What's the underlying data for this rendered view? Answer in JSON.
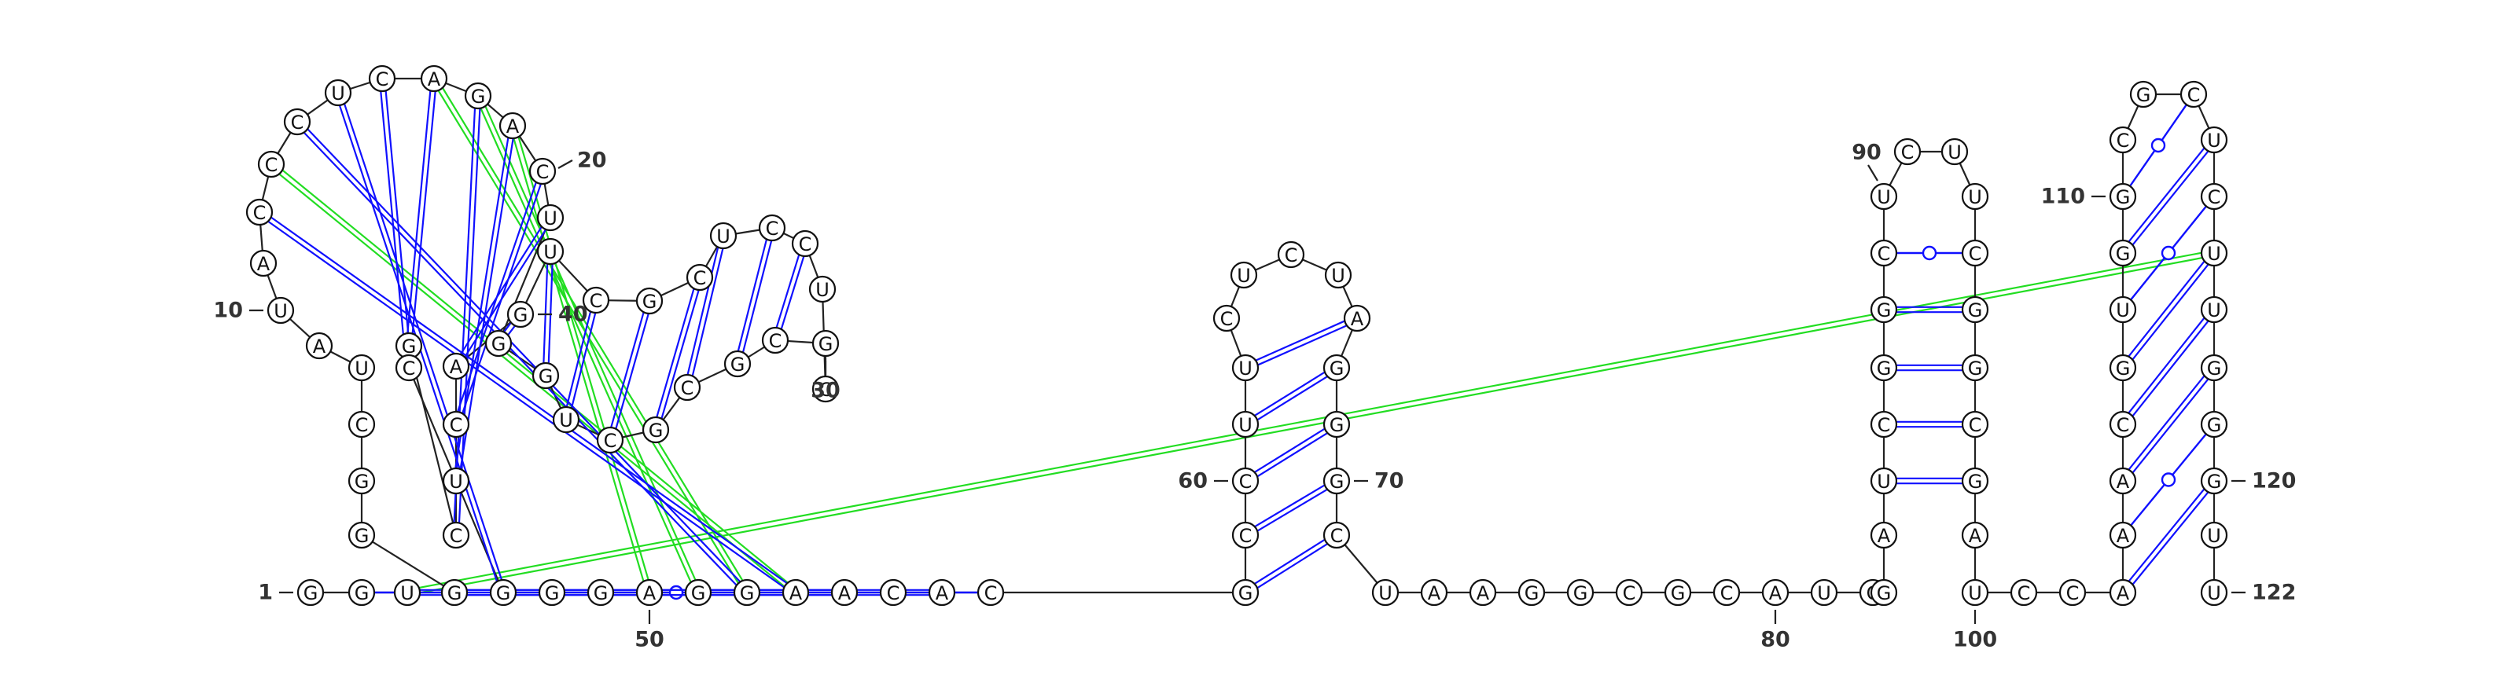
{
  "diagram": {
    "type": "rna-secondary-structure",
    "sequence": [
      "G",
      "G",
      "U",
      "G",
      "G",
      "G",
      "C",
      "U",
      "A",
      "U",
      "A",
      "C",
      "C",
      "C",
      "U",
      "C",
      "A",
      "G",
      "A",
      "C",
      "U",
      "G",
      "G",
      "U",
      "C",
      "G",
      "C",
      "G",
      "C",
      "G",
      "C",
      "U",
      "C",
      "C",
      "U",
      "C",
      "G",
      "C",
      "U",
      "G",
      "A",
      "C",
      "U",
      "C",
      "G",
      "C",
      "G",
      "G",
      "G",
      "A",
      "G",
      "G",
      "A",
      "A",
      "C",
      "A",
      "C",
      "G",
      "C",
      "C",
      "U",
      "U",
      "C",
      "U",
      "C",
      "U",
      "A",
      "G",
      "G",
      "G",
      "C",
      "U",
      "A",
      "A",
      "G",
      "G",
      "C",
      "G",
      "C",
      "A",
      "U",
      "C",
      "G",
      "A",
      "U",
      "C",
      "G",
      "G",
      "C",
      "U",
      "C",
      "U",
      "U",
      "C",
      "G",
      "G",
      "C",
      "G",
      "A",
      "U",
      "C",
      "C",
      "A",
      "A",
      "A",
      "C",
      "G",
      "U",
      "G",
      "G",
      "C",
      "G",
      "C",
      "U",
      "C",
      "U",
      "U",
      "G",
      "G",
      "G",
      "U",
      "U"
    ],
    "number_labels": [
      {
        "n": 1,
        "text": "1"
      },
      {
        "n": 10,
        "text": "10"
      },
      {
        "n": 20,
        "text": "20"
      },
      {
        "n": 30,
        "text": "30"
      },
      {
        "n": 40,
        "text": "40"
      },
      {
        "n": 50,
        "text": "50"
      },
      {
        "n": 60,
        "text": "60"
      },
      {
        "n": 70,
        "text": "70"
      },
      {
        "n": 80,
        "text": "80"
      },
      {
        "n": 90,
        "text": "90"
      },
      {
        "n": 100,
        "text": "100"
      },
      {
        "n": 110,
        "text": "110"
      },
      {
        "n": 120,
        "text": "120"
      },
      {
        "n": 122,
        "text": "122"
      }
    ],
    "pairs": [
      {
        "i": 2,
        "j": 57,
        "type": "wobble",
        "color": "#1010ff"
      },
      {
        "i": 3,
        "j": 54,
        "type": "canonical",
        "color": "#1010ff"
      },
      {
        "i": 4,
        "j": 56,
        "type": "canonical",
        "color": "#1010ff"
      },
      {
        "i": 12,
        "j": 53,
        "type": "canonical",
        "color": "#1010ff"
      },
      {
        "i": 14,
        "j": 52,
        "type": "canonical",
        "color": "#1010ff"
      },
      {
        "i": 15,
        "j": 47,
        "type": "canonical",
        "color": "#1010ff"
      },
      {
        "i": 16,
        "j": 46,
        "type": "canonical",
        "color": "#1010ff"
      },
      {
        "i": 17,
        "j": 45,
        "type": "canonical",
        "color": "#1010ff"
      },
      {
        "i": 18,
        "j": 44,
        "type": "canonical",
        "color": "#1010ff"
      },
      {
        "i": 19,
        "j": 43,
        "type": "canonical",
        "color": "#1010ff"
      },
      {
        "i": 20,
        "j": 42,
        "type": "canonical",
        "color": "#1010ff"
      },
      {
        "i": 21,
        "j": 41,
        "type": "canonical",
        "color": "#1010ff"
      },
      {
        "i": 22,
        "j": 40,
        "type": "canonical",
        "color": "#1010ff"
      },
      {
        "i": 23,
        "j": 39,
        "type": "canonical",
        "color": "#1010ff"
      },
      {
        "i": 24,
        "j": 38,
        "type": "canonical",
        "color": "#1010ff"
      },
      {
        "i": 25,
        "j": 37,
        "type": "canonical",
        "color": "#1010ff"
      },
      {
        "i": 26,
        "j": 36,
        "type": "canonical",
        "color": "#1010ff"
      },
      {
        "i": 27,
        "j": 35,
        "type": "canonical",
        "color": "#1010ff"
      },
      {
        "i": 28,
        "j": 34,
        "type": "canonical",
        "color": "#1010ff"
      },
      {
        "i": 29,
        "j": 33,
        "type": "canonical",
        "color": "#1010ff"
      },
      {
        "i": 58,
        "j": 71,
        "type": "canonical",
        "color": "#1010ff"
      },
      {
        "i": 59,
        "j": 70,
        "type": "canonical",
        "color": "#1010ff"
      },
      {
        "i": 60,
        "j": 69,
        "type": "canonical",
        "color": "#1010ff"
      },
      {
        "i": 61,
        "j": 68,
        "type": "canonical",
        "color": "#1010ff"
      },
      {
        "i": 62,
        "j": 67,
        "type": "canonical",
        "color": "#1010ff"
      },
      {
        "i": 85,
        "j": 98,
        "type": "canonical",
        "color": "#1010ff"
      },
      {
        "i": 86,
        "j": 97,
        "type": "canonical",
        "color": "#1010ff"
      },
      {
        "i": 87,
        "j": 96,
        "type": "canonical",
        "color": "#1010ff"
      },
      {
        "i": 88,
        "j": 95,
        "type": "canonical",
        "color": "#1010ff"
      },
      {
        "i": 89,
        "j": 94,
        "type": "wobble",
        "color": "#1010ff"
      },
      {
        "i": 103,
        "j": 120,
        "type": "canonical",
        "color": "#1010ff"
      },
      {
        "i": 104,
        "j": 119,
        "type": "wobble",
        "color": "#1010ff"
      },
      {
        "i": 105,
        "j": 118,
        "type": "canonical",
        "color": "#1010ff"
      },
      {
        "i": 106,
        "j": 117,
        "type": "canonical",
        "color": "#1010ff"
      },
      {
        "i": 107,
        "j": 116,
        "type": "canonical",
        "color": "#1010ff"
      },
      {
        "i": 108,
        "j": 115,
        "type": "wobble",
        "color": "#1010ff"
      },
      {
        "i": 109,
        "j": 114,
        "type": "canonical",
        "color": "#1010ff"
      },
      {
        "i": 110,
        "j": 113,
        "type": "wobble",
        "color": "#1010ff"
      },
      {
        "i": 13,
        "j": 53,
        "type": "pseudoknot",
        "color": "#22dd22"
      },
      {
        "i": 17,
        "j": 52,
        "type": "pseudoknot",
        "color": "#22dd22"
      },
      {
        "i": 18,
        "j": 51,
        "type": "pseudoknot",
        "color": "#22dd22"
      },
      {
        "i": 19,
        "j": 50,
        "type": "pseudoknot",
        "color": "#22dd22"
      },
      {
        "i": 3,
        "j": 116,
        "type": "pseudoknot",
        "color": "#22dd22"
      }
    ]
  }
}
